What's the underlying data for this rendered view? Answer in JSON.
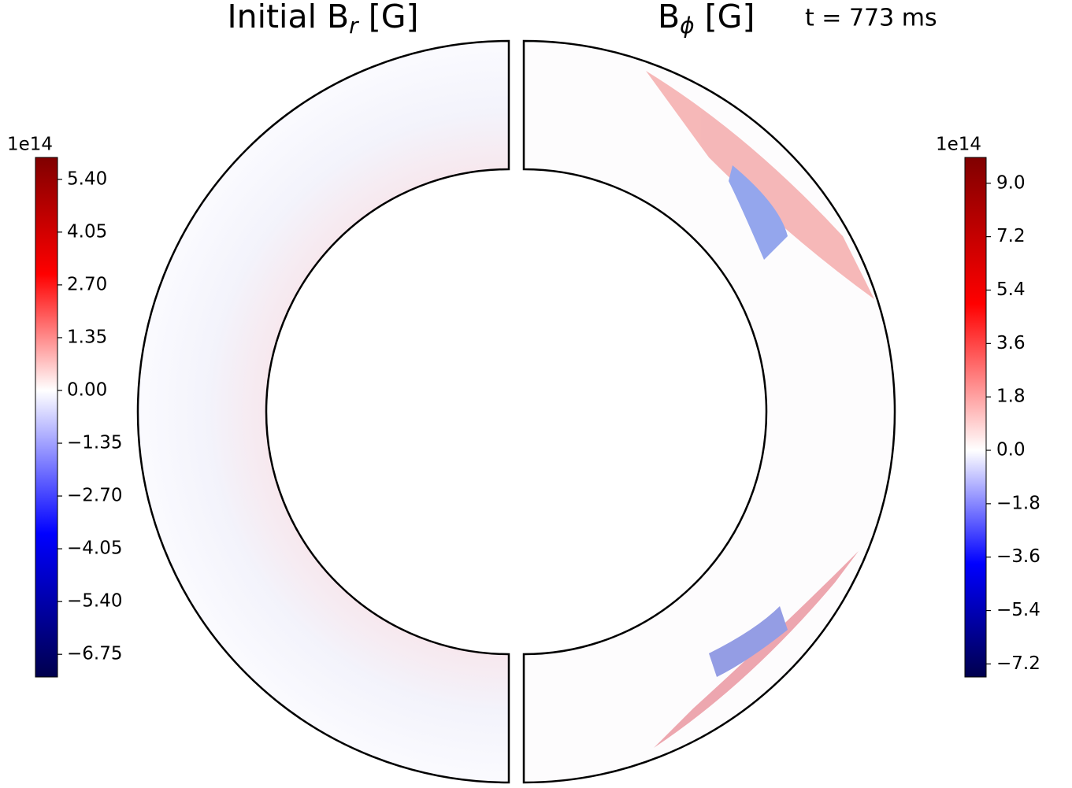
{
  "chart_data": [
    {
      "type": "field",
      "colormap": "seismic",
      "title": {
        "main": "Initial B",
        "sub": "r",
        "unit": "[G]"
      },
      "colorbar": {
        "offset_label": "1e14",
        "lim": [
          -7.33,
          5.96
        ],
        "ticks": [
          {
            "value": 5.4,
            "label": "5.40"
          },
          {
            "value": 4.05,
            "label": "4.05"
          },
          {
            "value": 2.7,
            "label": "2.70"
          },
          {
            "value": 1.35,
            "label": "1.35"
          },
          {
            "value": 0,
            "label": "0.00"
          },
          {
            "value": -1.35,
            "label": "−1.35"
          },
          {
            "value": -2.7,
            "label": "−2.70"
          },
          {
            "value": -4.05,
            "label": "−4.05"
          },
          {
            "value": -5.4,
            "label": "−5.40"
          },
          {
            "value": -6.75,
            "label": "−6.75"
          }
        ]
      }
    },
    {
      "type": "field",
      "colormap": "seismic",
      "title": {
        "main": "B",
        "sub": "ϕ",
        "unit": "[G]"
      },
      "annotation": "t = 773 ms",
      "colorbar": {
        "offset_label": "1e14",
        "lim": [
          -7.64,
          9.87
        ],
        "ticks": [
          {
            "value": 9,
            "label": "9.0"
          },
          7.2,
          5.4,
          3.6,
          1.8,
          {
            "value": 0,
            "label": "0.0"
          },
          {
            "value": -1.8,
            "label": "−1.8"
          },
          {
            "value": -3.6,
            "label": "−3.6"
          },
          {
            "value": -5.4,
            "label": "−5.4"
          },
          {
            "value": -7.2,
            "label": "−7.2"
          }
        ]
      }
    }
  ]
}
